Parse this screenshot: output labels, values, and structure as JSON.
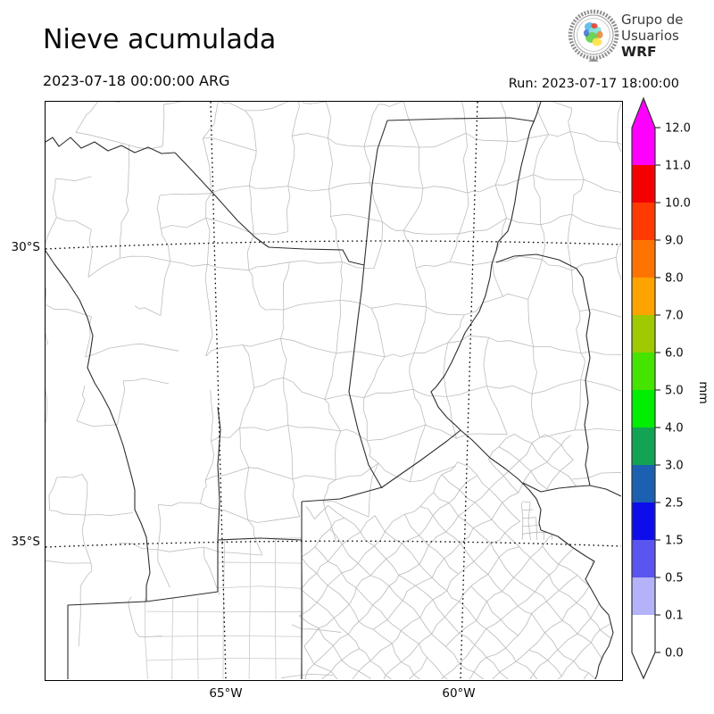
{
  "header": {
    "title": "Nieve acumulada",
    "valid_datetime": "2023-07-18 00:00:00 ARG",
    "run_label": "Run: 2023-07-17 18:00:00"
  },
  "logo": {
    "org_line1": "Grupo de",
    "org_line2": "Usuarios",
    "org_line3": "WRF"
  },
  "map": {
    "lat_label_30": "30°S",
    "lat_label_35": "35°S",
    "lon_label_65": "65°W",
    "lon_label_60": "60°W"
  },
  "chart_data": {
    "type": "map",
    "title": "Nieve acumulada",
    "valid": "2023-07-18 00:00:00 ARG",
    "run": "2023-07-17 18:00:00",
    "graticule": {
      "lat_lines": [
        "30°S",
        "35°S"
      ],
      "lon_lines": [
        "65°W",
        "60°W"
      ],
      "style": "dotted"
    },
    "field_note": "no accumulated snow shading visible; entire map area is white",
    "colorbar": {
      "unit": "mm",
      "boundaries": [
        0.0,
        0.1,
        0.5,
        1.5,
        2.5,
        3.0,
        4.0,
        5.0,
        6.0,
        7.0,
        8.0,
        9.0,
        10.0,
        11.0,
        12.0
      ],
      "tick_labels": [
        "0.0",
        "0.1",
        "0.5",
        "1.5",
        "2.5",
        "3.0",
        "4.0",
        "5.0",
        "6.0",
        "7.0",
        "8.0",
        "9.0",
        "10.0",
        "11.0",
        "12.0"
      ],
      "segment_colors_bottom_to_top": [
        "#ffffff",
        "#b4b2f8",
        "#5a54f0",
        "#0d0deb",
        "#1c61b1",
        "#12a452",
        "#00ee00",
        "#45e300",
        "#9fc900",
        "#ffa300",
        "#ff7400",
        "#ff3a00",
        "#f40000",
        "#ff00ff"
      ],
      "extend_over_color": "#ff00ff",
      "extend_under_color": "#ffffff",
      "outline_color": "#333333"
    }
  }
}
